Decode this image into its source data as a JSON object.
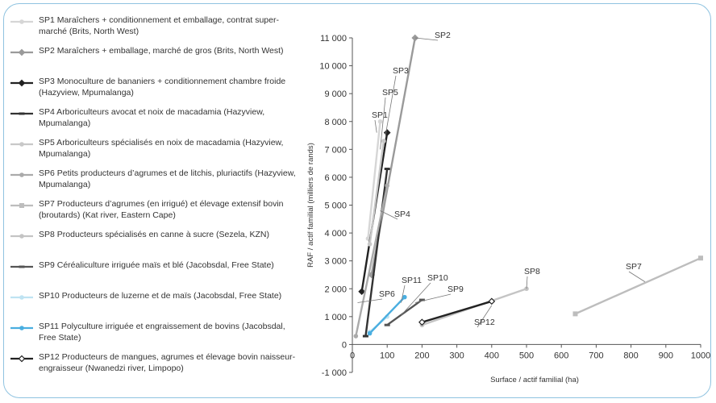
{
  "chart_data": {
    "type": "scatter",
    "xlabel": "Surface / actif familial (ha)",
    "ylabel": "RAF / actif familial (milliers de rands)",
    "xlim": [
      0,
      1000
    ],
    "ylim": [
      -1000,
      11000
    ],
    "x_ticks": [
      "0",
      "100",
      "200",
      "300",
      "400",
      "500",
      "600",
      "700",
      "800",
      "900",
      "1000"
    ],
    "y_ticks": [
      "-1 000",
      "0",
      "1 000",
      "2 000",
      "3 000",
      "4 000",
      "5 000",
      "6 000",
      "7 000",
      "8 000",
      "9 000",
      "10 000",
      "11 000"
    ],
    "grid": false,
    "legend_position": "left",
    "series": [
      {
        "name": "SP1",
        "legend": "SP1 Maraîchers + conditionnement et emballage, contrat super-marché (Brits, North West)",
        "color": "#d6d6d6",
        "marker": "circle",
        "x": [
          45,
          80
        ],
        "y": [
          3800,
          8000
        ]
      },
      {
        "name": "SP2",
        "legend": "SP2 Maraîchers + emballage, marché de gros (Brits, North West)",
        "color": "#9a9a9a",
        "marker": "diamond",
        "x": [
          55,
          180
        ],
        "y": [
          2500,
          11000
        ]
      },
      {
        "name": "SP3",
        "legend": "SP3 Monoculture de bananiers + conditionnement chambre froide (Hazyview, Mpumalanga)",
        "color": "#222222",
        "marker": "diamond",
        "x": [
          27,
          100
        ],
        "y": [
          1900,
          7600
        ]
      },
      {
        "name": "SP4",
        "legend": "SP4 Arboriculteurs avocat et noix de macadamia (Hazyview, Mpumalanga)",
        "color": "#333333",
        "marker": "dash",
        "x": [
          38,
          100
        ],
        "y": [
          300,
          6300
        ]
      },
      {
        "name": "SP5",
        "legend": "SP5 Arboriculteurs spécialisés en noix de macadamia (Hazyview, Mpumalanga)",
        "color": "#c8c8c8",
        "marker": "circle",
        "x": [
          50,
          90
        ],
        "y": [
          3600,
          7300
        ]
      },
      {
        "name": "SP6",
        "legend": "SP6 Petits producteurs d’agrumes et de litchis, pluriactifs (Hazyview, Mpumalanga)",
        "color": "#aaaaaa",
        "marker": "circle",
        "x": [
          10,
          100
        ],
        "y": [
          300,
          5700
        ]
      },
      {
        "name": "SP7",
        "legend": "SP7 Producteurs d’agrumes (en irrigué) et élevage extensif bovin (broutards) (Kat river, Eastern Cape)",
        "color": "#bdbdbd",
        "marker": "square",
        "x": [
          640,
          1000
        ],
        "y": [
          1100,
          3100
        ]
      },
      {
        "name": "SP8",
        "legend": "SP8 Producteurs spécialisés en canne à sucre (Sezela, KZN)",
        "color": "#c4c4c4",
        "marker": "circle",
        "x": [
          200,
          500
        ],
        "y": [
          700,
          2000
        ]
      },
      {
        "name": "SP9",
        "legend": "SP9 Céréaliculture irriguée maïs et blé (Jacobsdal, Free State)",
        "color": "#555555",
        "marker": "dash",
        "x": [
          100,
          200
        ],
        "y": [
          700,
          1600
        ]
      },
      {
        "name": "SP10",
        "legend": "SP10 Producteurs de luzerne et de maïs (Jacobsdal, Free State)",
        "color": "#bfe3f2",
        "marker": "circle",
        "x": [
          50,
          100
        ],
        "y": [
          450,
          1000
        ]
      },
      {
        "name": "SP11",
        "legend": "SP11 Polyculture irriguée et engraissement de bovins (Jacobsdal, Free State)",
        "color": "#4aaee0",
        "marker": "circle",
        "x": [
          50,
          150
        ],
        "y": [
          400,
          1700
        ]
      },
      {
        "name": "SP12",
        "legend": "SP12 Producteurs de mangues, agrumes et élevage bovin naisseur-engraisseur (Nwanedzi river, Limpopo)",
        "color": "#222222",
        "marker": "open-diamond",
        "x": [
          200,
          400
        ],
        "y": [
          800,
          1550
        ]
      }
    ],
    "point_labels": [
      "SP1",
      "SP2",
      "SP3",
      "SP4",
      "SP5",
      "SP6",
      "SP7",
      "SP8",
      "SP9",
      "SP10",
      "SP11",
      "SP12"
    ]
  }
}
